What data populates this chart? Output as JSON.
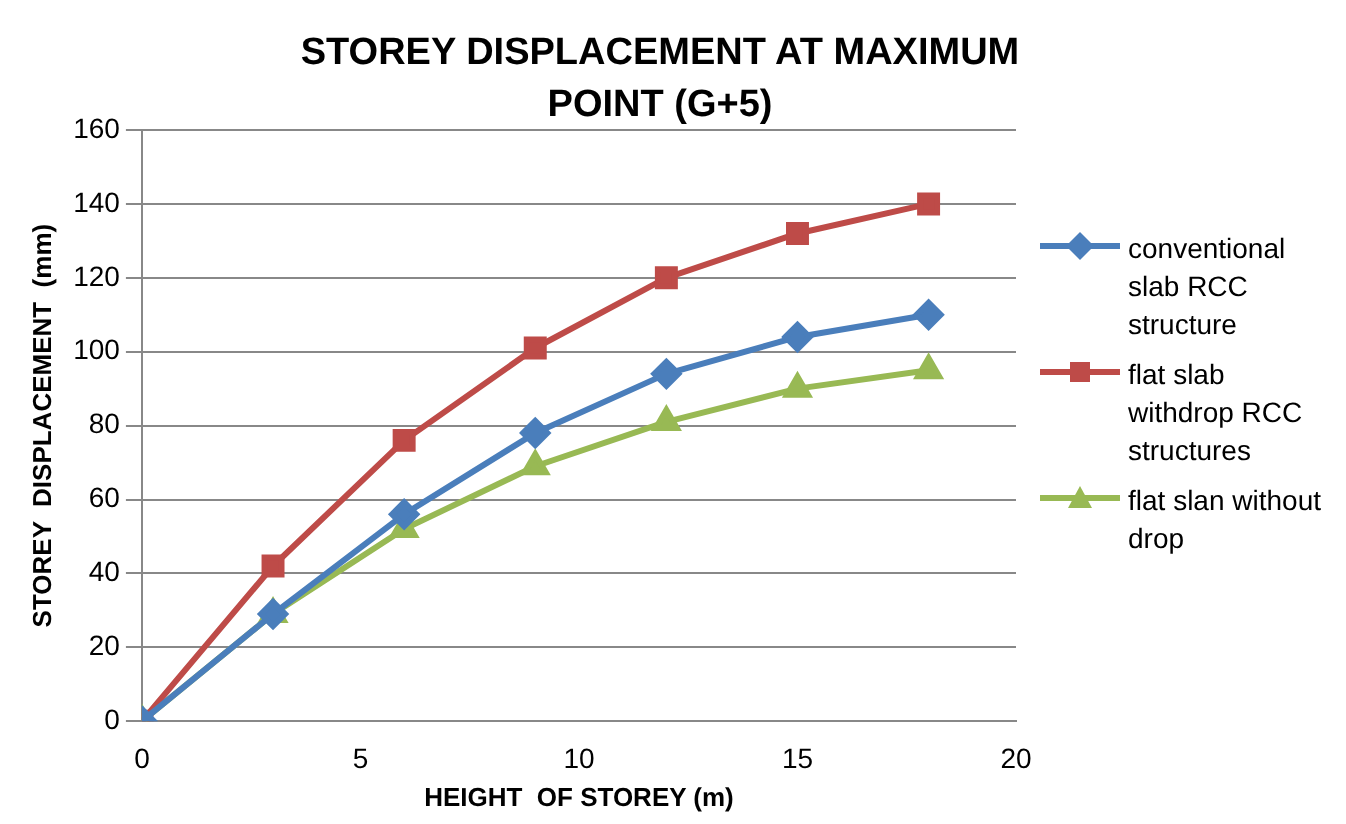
{
  "chart_data": {
    "type": "line",
    "title": "STOREY DISPLACEMENT AT MAXIMUM POINT (G+5)",
    "xlabel": "HEIGHT  OF STOREY (m)",
    "ylabel": "STOREY  DISPLACEMENT  (mm)",
    "x": [
      0,
      3,
      6,
      9,
      12,
      15,
      18
    ],
    "series": [
      {
        "name": "conventional slab RCC structure",
        "color": "#4a7ebb",
        "marker": "diamond",
        "values": [
          0,
          29,
          56,
          78,
          94,
          104,
          110
        ]
      },
      {
        "name": "flat slab withdrop RCC structures",
        "color": "#be4b48",
        "marker": "square",
        "values": [
          0,
          42,
          76,
          101,
          120,
          132,
          140
        ]
      },
      {
        "name": "flat slan without drop",
        "color": "#98b954",
        "marker": "triangle",
        "values": [
          0,
          29,
          52,
          69,
          81,
          90,
          95
        ]
      }
    ],
    "xlim": [
      0,
      20
    ],
    "xticks": [
      0,
      5,
      10,
      15,
      20
    ],
    "ylim": [
      0,
      160
    ],
    "yticks": [
      0,
      20,
      40,
      60,
      80,
      100,
      120,
      140,
      160
    ],
    "grid": "y",
    "legend": "right",
    "line_style": "solid"
  }
}
